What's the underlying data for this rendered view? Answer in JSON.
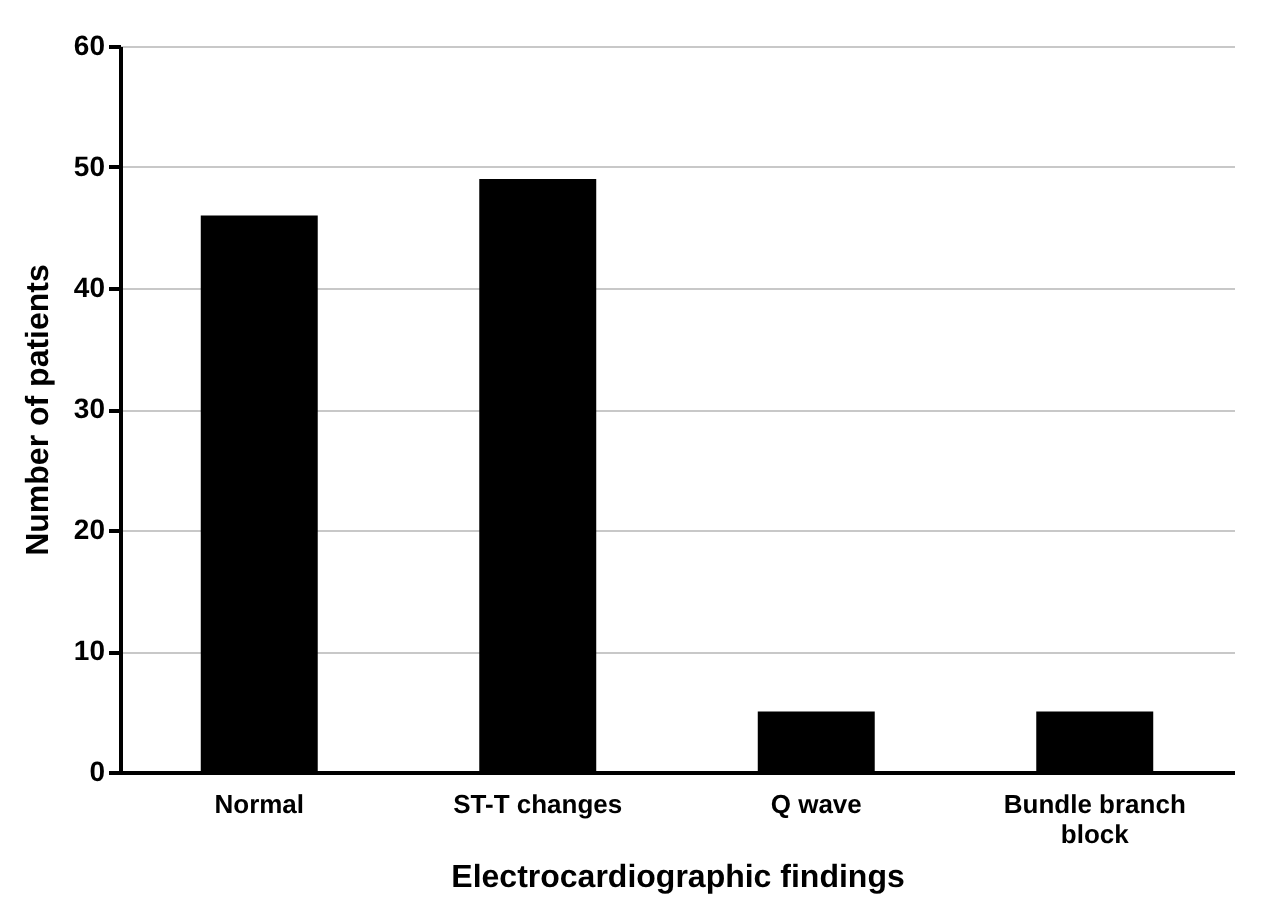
{
  "chart_data": {
    "type": "bar",
    "xlabel": "Electrocardiographic findings",
    "ylabel": "Number of patients",
    "categories": [
      "Normal",
      "ST-T changes",
      "Q wave",
      "Bundle branch block"
    ],
    "values": [
      46,
      49,
      5,
      5
    ],
    "color": "#000000",
    "ylim": [
      0,
      60
    ],
    "yticks": [
      0,
      10,
      20,
      30,
      40,
      50,
      60
    ],
    "grid": "y"
  }
}
